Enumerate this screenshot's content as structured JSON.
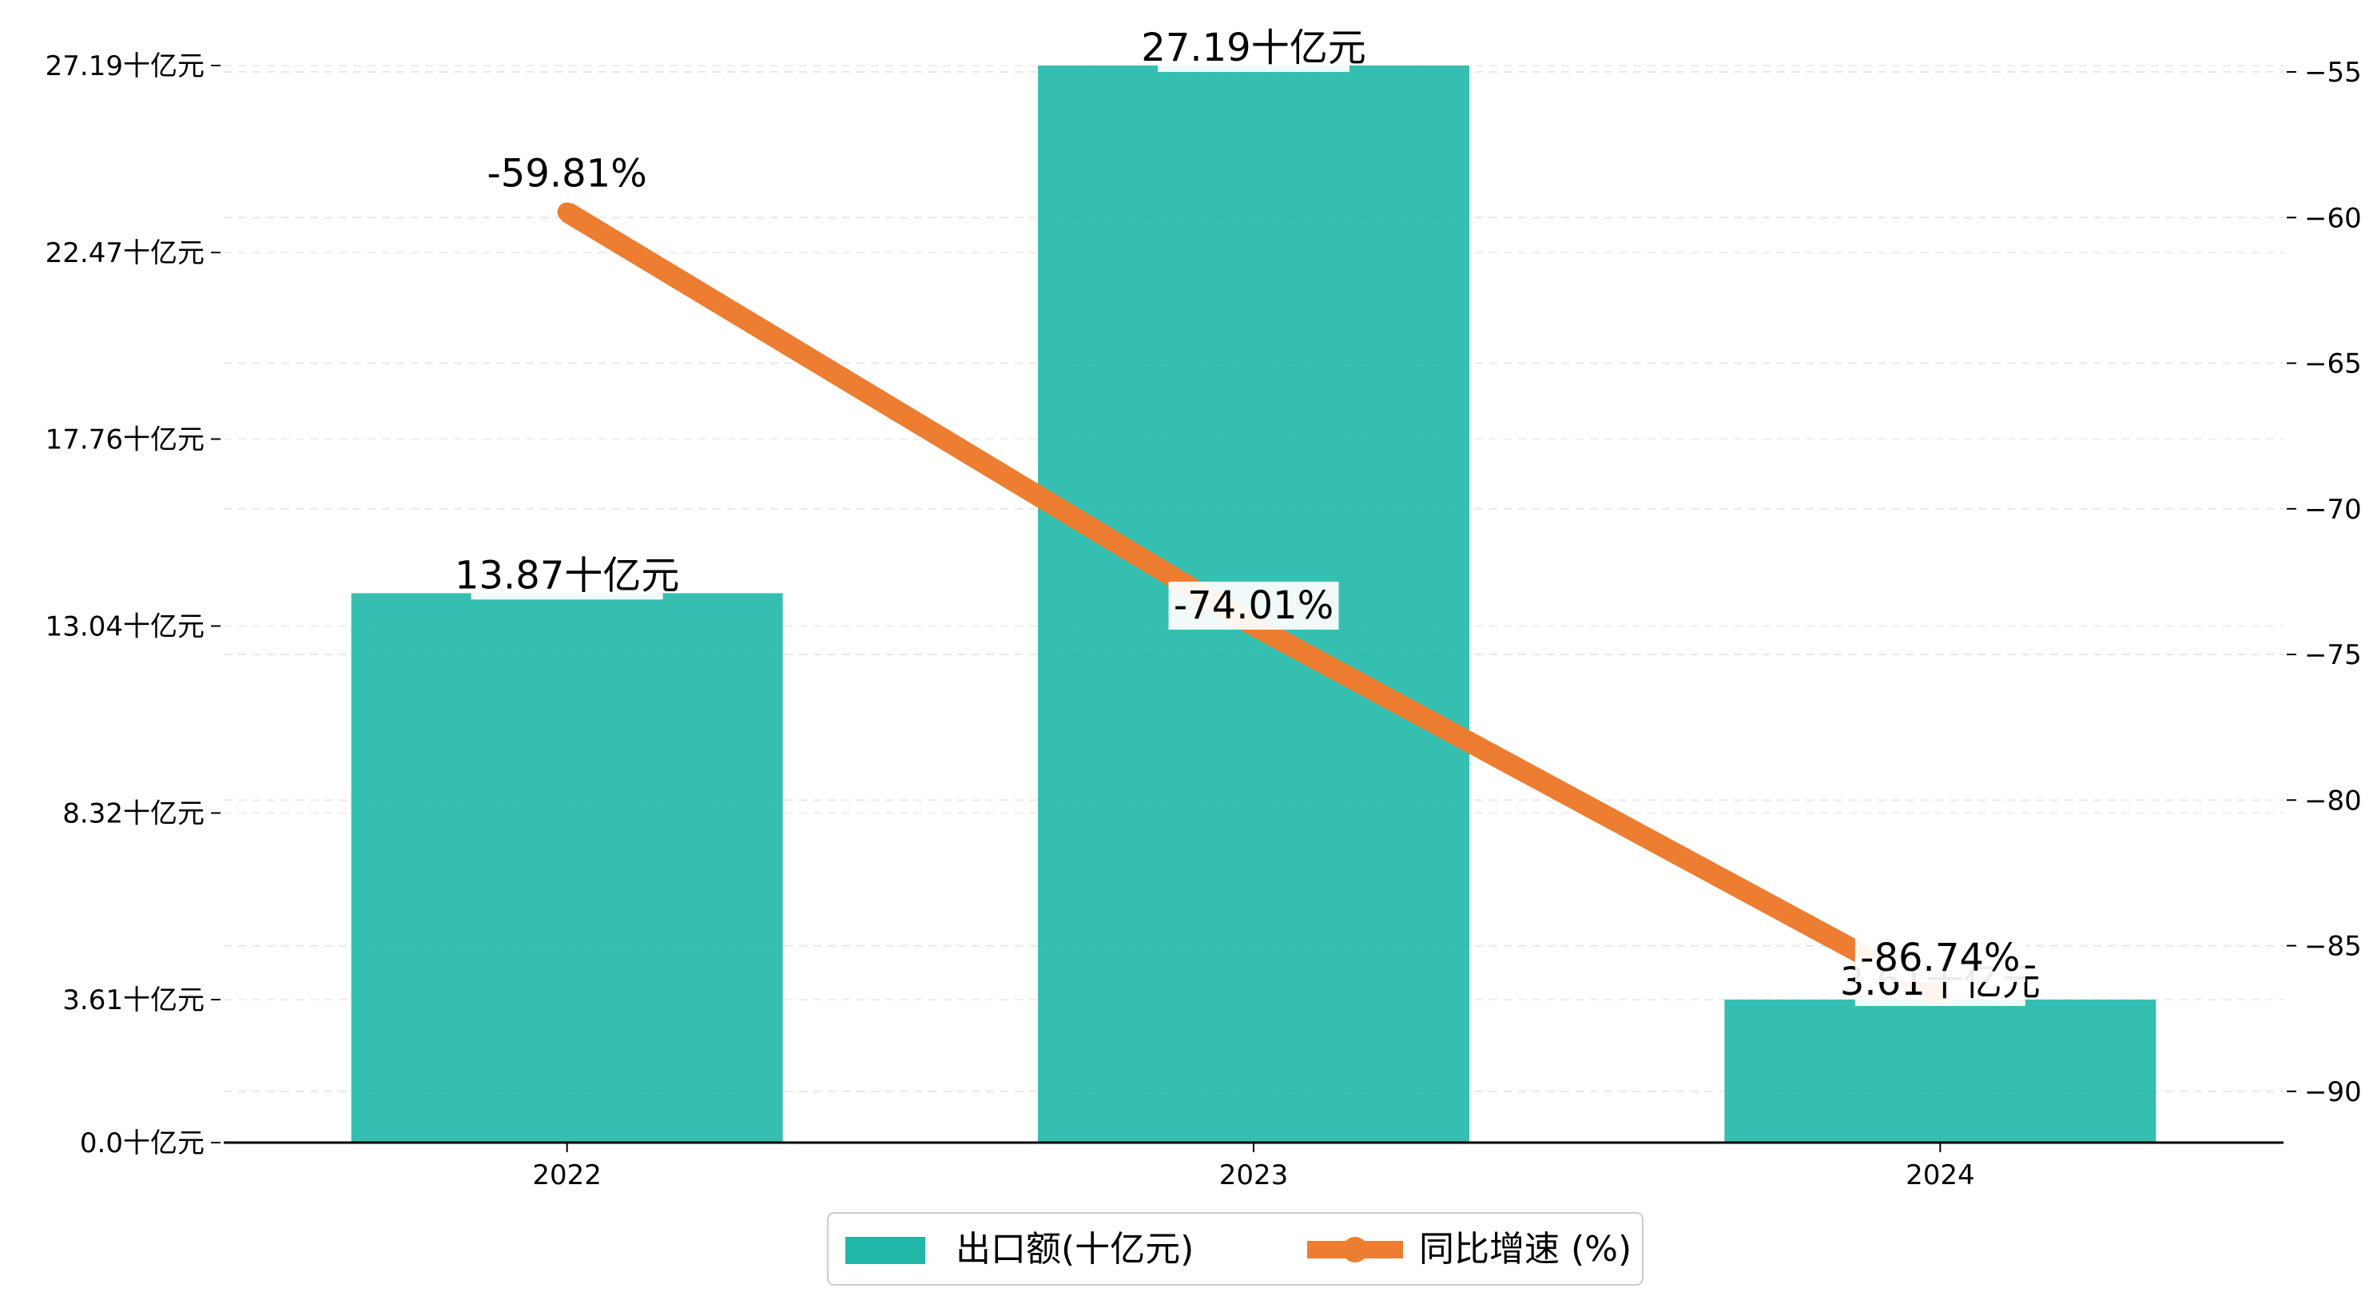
{
  "chart_data": {
    "type": "bar",
    "categories": [
      "2022",
      "2023",
      "2024"
    ],
    "series": [
      {
        "name": "出口额(十亿元)",
        "kind": "bar",
        "axis": "left",
        "color": "#1fb8a8",
        "values": [
          13.87,
          27.19,
          3.61
        ],
        "value_labels": [
          "13.87十亿元",
          "27.19十亿元",
          "3.61十亿元"
        ]
      },
      {
        "name": "同比增速 (%)",
        "kind": "line",
        "axis": "right",
        "color": "#ed7d31",
        "values": [
          -59.81,
          -74.01,
          -86.74
        ],
        "value_labels": [
          "-59.81%",
          "-74.01%",
          "-86.74%"
        ]
      }
    ],
    "left_axis": {
      "ylim": [
        0,
        27.19
      ],
      "ticks": [
        0.0,
        3.61,
        8.32,
        13.04,
        17.76,
        22.47,
        27.19
      ],
      "tick_labels": [
        "0.0十亿元",
        "3.61十亿元",
        "8.32十亿元",
        "13.04十亿元",
        "17.76十亿元",
        "22.47十亿元",
        "27.19十亿元"
      ]
    },
    "right_axis": {
      "ylim": [
        -91.76,
        -54.78
      ],
      "ticks": [
        -90,
        -85,
        -80,
        -75,
        -70,
        -65,
        -60,
        -55
      ],
      "tick_labels": [
        "−90",
        "−85",
        "−80",
        "−75",
        "−70",
        "−65",
        "−60",
        "−55"
      ]
    },
    "grid": true,
    "legend_position": "bottom-center",
    "title": "",
    "xlabel": "",
    "ylabel": ""
  }
}
